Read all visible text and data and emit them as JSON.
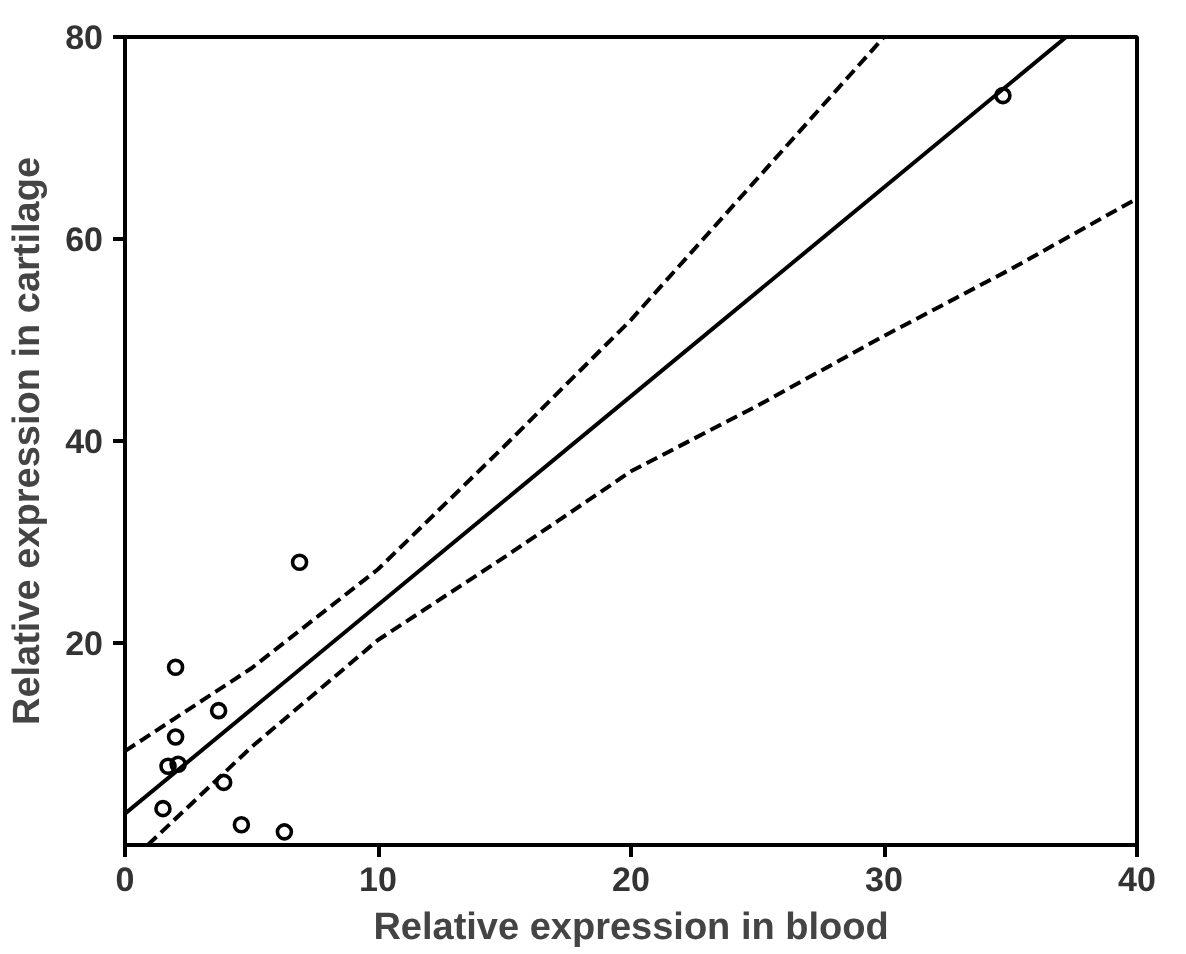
{
  "chart_data": {
    "type": "scatter",
    "xlabel": "Relative expression in blood",
    "ylabel": "Relative expression in cartilage",
    "xlim": [
      0,
      40
    ],
    "ylim": [
      0,
      80
    ],
    "xticks": [
      0,
      10,
      20,
      30,
      40
    ],
    "yticks": [
      20,
      40,
      60,
      80
    ],
    "grid": false,
    "series": [
      {
        "marker": "circle",
        "color": "#000000",
        "x": [
          34.7,
          6.9,
          2.0,
          3.7,
          2.0,
          1.7,
          2.1,
          3.9,
          1.5,
          4.6,
          6.3
        ],
        "values": [
          74.2,
          28,
          17.6,
          13.3,
          10.7,
          7.8,
          8,
          6.2,
          3.6,
          2,
          1.3
        ]
      },
      {
        "type": "line",
        "marker": "none",
        "color": "#000000",
        "line_style": "solid",
        "x": [
          0,
          37.2
        ],
        "values": [
          3.1,
          80
        ]
      },
      {
        "type": "line",
        "marker": "none",
        "color": "#000000",
        "line_style": "dashed",
        "x": [
          0,
          5,
          10,
          15,
          20,
          25,
          30
        ],
        "values": [
          9.3,
          17.5,
          27.3,
          39.5,
          52,
          66,
          80
        ]
      },
      {
        "type": "line",
        "marker": "none",
        "color": "#000000",
        "line_style": "dashed",
        "x": [
          0.9,
          5,
          10,
          15,
          20,
          25,
          30,
          35,
          40
        ],
        "values": [
          0,
          9.7,
          20.3,
          28.5,
          37,
          43.5,
          50.4,
          57,
          64
        ]
      }
    ]
  }
}
